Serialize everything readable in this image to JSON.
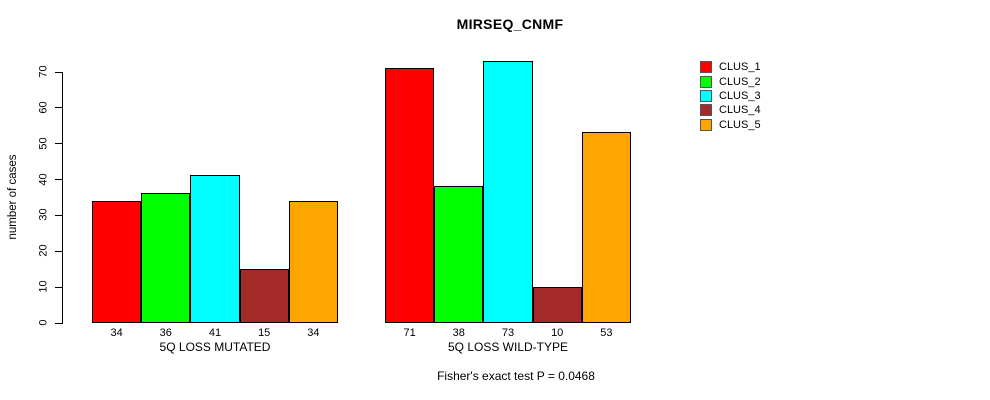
{
  "chart_data": {
    "type": "bar",
    "title": "MIRSEQ_CNMF",
    "ylabel": "number of cases",
    "xlabel": "",
    "caption": "Fisher's exact test P = 0.0468",
    "ylim": [
      0,
      70
    ],
    "yticks": [
      0,
      10,
      20,
      30,
      40,
      50,
      60,
      70
    ],
    "grid": false,
    "legend_position": "right",
    "bar_value_labels": true,
    "categories": [
      "5Q LOSS MUTATED",
      "5Q LOSS WILD-TYPE"
    ],
    "series": [
      {
        "name": "CLUS_1",
        "color": "#FF0000",
        "values": [
          34,
          71
        ]
      },
      {
        "name": "CLUS_2",
        "color": "#00FF00",
        "values": [
          36,
          38
        ]
      },
      {
        "name": "CLUS_3",
        "color": "#00FFFF",
        "values": [
          41,
          73
        ]
      },
      {
        "name": "CLUS_4",
        "color": "#A52A2A",
        "values": [
          15,
          10
        ]
      },
      {
        "name": "CLUS_5",
        "color": "#FFA500",
        "values": [
          34,
          53
        ]
      }
    ]
  }
}
